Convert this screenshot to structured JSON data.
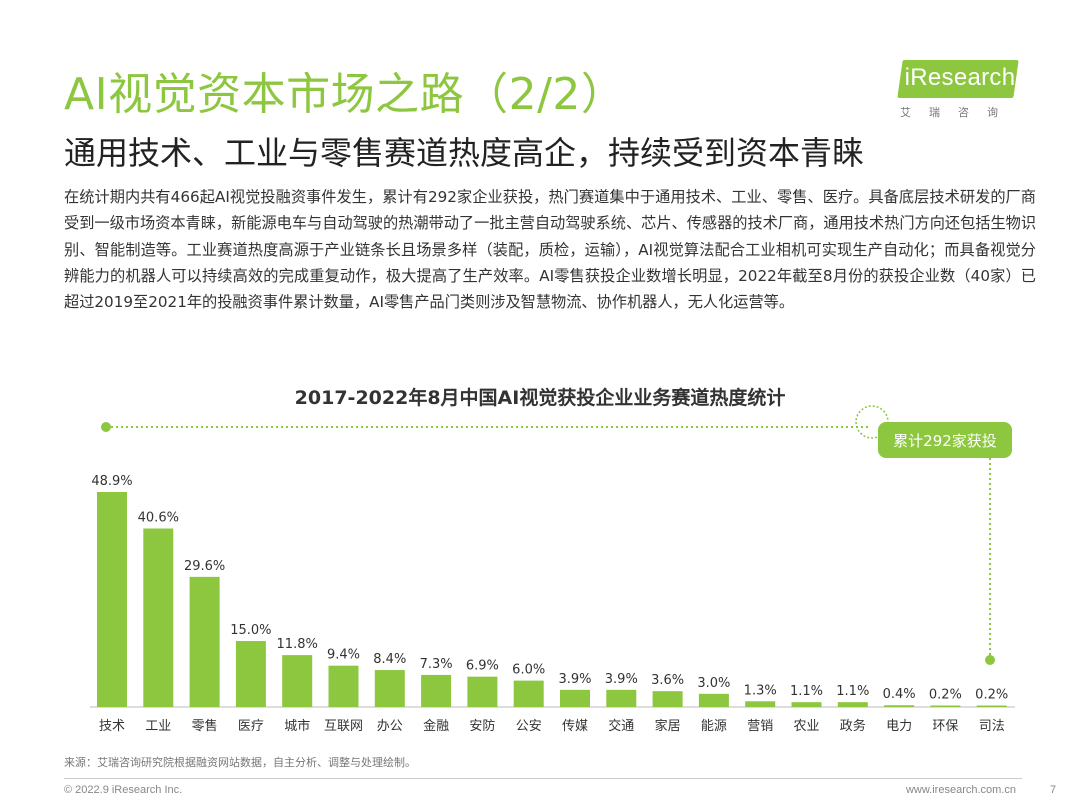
{
  "header": {
    "title": "AI视觉资本市场之路（2/2）",
    "subtitle": "通用技术、工业与零售赛道热度高企，持续受到资本青睐"
  },
  "logo": {
    "brand": "iResearch",
    "cn": "艾瑞咨询"
  },
  "body_text": "在统计期内共有466起AI视觉投融资事件发生，累计有292家企业获投，热门赛道集中于通用技术、工业、零售、医疗。具备底层技术研发的厂商受到一级市场资本青睐，新能源电车与自动驾驶的热潮带动了一批主营自动驾驶系统、芯片、传感器的技术厂商，通用技术热门方向还包括生物识别、智能制造等。工业赛道热度高源于产业链条长且场景多样（装配，质检，运输），AI视觉算法配合工业相机可实现生产自动化；而具备视觉分辨能力的机器人可以持续高效的完成重复动作，极大提高了生产效率。AI零售获投企业数增长明显，2022年截至8月份的获投企业数（40家）已超过2019至2021年的投融资事件累计数量，AI零售产品门类则涉及智慧物流、协作机器人，无人化运营等。",
  "chart_data": {
    "type": "bar",
    "title": "2017-2022年8月中国AI视觉获投企业业务赛道热度统计",
    "annotation": "累计292家获投",
    "categories": [
      "技术",
      "工业",
      "零售",
      "医疗",
      "城市",
      "互联网",
      "办公",
      "金融",
      "安防",
      "公安",
      "传媒",
      "交通",
      "家居",
      "能源",
      "营销",
      "农业",
      "政务",
      "电力",
      "环保",
      "司法"
    ],
    "values": [
      48.9,
      40.6,
      29.6,
      15.0,
      11.8,
      9.4,
      8.4,
      7.3,
      6.9,
      6.0,
      3.9,
      3.9,
      3.6,
      3.0,
      1.3,
      1.1,
      1.1,
      0.4,
      0.2,
      0.2
    ],
    "value_labels": [
      "48.9%",
      "40.6%",
      "29.6%",
      "15.0%",
      "11.8%",
      "9.4%",
      "8.4%",
      "7.3%",
      "6.9%",
      "6.0%",
      "3.9%",
      "3.9%",
      "3.6%",
      "3.0%",
      "1.3%",
      "1.1%",
      "1.1%",
      "0.4%",
      "0.2%",
      "0.2%"
    ],
    "unit": "%",
    "grid": false,
    "bar_color": "#8dc63f",
    "accent_color": "#8dc63f"
  },
  "footer": {
    "source": "来源：艾瑞咨询研究院根据融资网站数据，自主分析、调整与处理绘制。",
    "copyright": "© 2022.9 iResearch Inc.",
    "website": "www.iresearch.com.cn",
    "page": "7"
  }
}
